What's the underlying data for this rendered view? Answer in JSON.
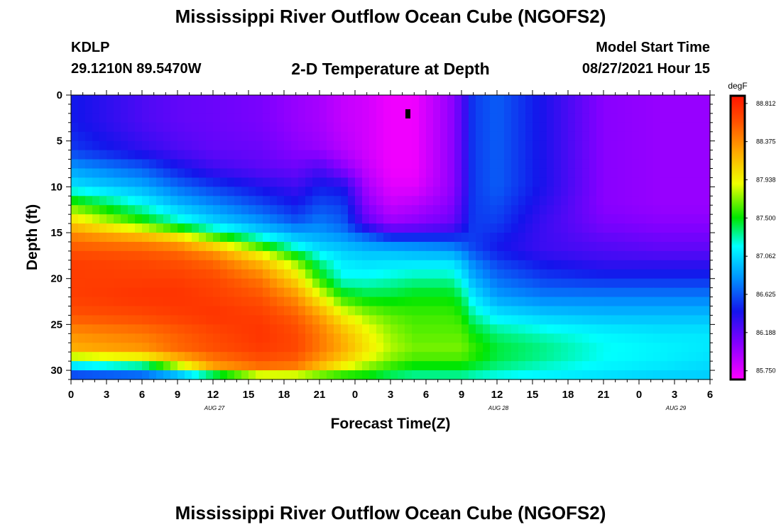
{
  "header": {
    "title": "Mississippi River Outflow Ocean Cube (NGOFS2)",
    "footer_title": "Mississippi River Outflow Ocean Cube (NGOFS2)",
    "station": "KDLP",
    "coordinates": "29.1210N  89.5470W",
    "subtitle": "2-D Temperature at Depth",
    "model_start_label": "Model Start Time",
    "model_start_value": "08/27/2021 Hour 15"
  },
  "chart_data": {
    "type": "heatmap",
    "title": "2-D Temperature at Depth",
    "xlabel": "Forecast Time(Z)",
    "ylabel": "Depth (ft)",
    "x_tick_labels": [
      "0",
      "3",
      "6",
      "9",
      "12",
      "15",
      "18",
      "21",
      "0",
      "3",
      "6",
      "9",
      "12",
      "15",
      "18",
      "21",
      "0",
      "3",
      "6"
    ],
    "x_hours_since_start": [
      0,
      3,
      6,
      9,
      12,
      15,
      18,
      21,
      24,
      27,
      30,
      33,
      36,
      39,
      42,
      45,
      48,
      51,
      54
    ],
    "xlim": [
      0,
      54
    ],
    "date_labels": [
      {
        "label": "AUG 27",
        "hour": 12
      },
      {
        "label": "AUG 28",
        "hour": 36
      },
      {
        "label": "AUG 29",
        "hour": 51
      }
    ],
    "y_ticks": [
      0,
      5,
      10,
      15,
      20,
      25,
      30
    ],
    "ylim": [
      0,
      31
    ],
    "y_inverted": true,
    "colorbar": {
      "unit": "degF",
      "ticks": [
        88.812,
        88.375,
        87.938,
        87.5,
        87.062,
        86.625,
        86.188,
        85.75
      ],
      "min": 85.65,
      "max": 88.9
    },
    "control_points_hours": [
      0,
      6,
      9,
      12,
      16,
      19,
      21,
      23,
      25,
      27,
      29,
      32,
      33,
      34,
      36,
      40,
      45,
      50,
      54
    ],
    "control_points_depths": [
      0,
      3,
      6,
      8,
      10,
      12,
      14,
      15,
      16,
      17,
      18,
      20,
      22,
      24,
      26,
      28,
      29.5,
      31
    ],
    "temperature_grid": [
      [
        86.45,
        86.25,
        86.18,
        86.15,
        86.1,
        86.0,
        85.95,
        85.85,
        85.8,
        85.7,
        85.7,
        86.0,
        86.2,
        86.55,
        86.65,
        86.4,
        86.05,
        86.0,
        86.0
      ],
      [
        86.45,
        86.25,
        86.18,
        86.15,
        86.1,
        86.0,
        85.95,
        85.85,
        85.8,
        85.7,
        85.7,
        86.0,
        86.2,
        86.55,
        86.65,
        86.4,
        86.05,
        86.0,
        86.0
      ],
      [
        86.55,
        86.35,
        86.25,
        86.18,
        86.15,
        86.05,
        86.0,
        85.9,
        85.8,
        85.7,
        85.7,
        86.0,
        86.2,
        86.55,
        86.65,
        86.4,
        86.05,
        86.0,
        86.0
      ],
      [
        86.85,
        86.65,
        86.45,
        86.3,
        86.2,
        86.15,
        86.25,
        86.05,
        85.85,
        85.7,
        85.7,
        86.0,
        86.2,
        86.55,
        86.65,
        86.4,
        86.05,
        86.0,
        86.0
      ],
      [
        87.1,
        86.9,
        86.7,
        86.55,
        86.4,
        86.3,
        86.45,
        86.4,
        85.95,
        85.75,
        85.75,
        86.0,
        86.2,
        86.55,
        86.65,
        86.4,
        86.05,
        86.0,
        86.0
      ],
      [
        87.65,
        87.2,
        86.95,
        86.8,
        86.6,
        86.45,
        86.6,
        86.55,
        86.05,
        85.85,
        85.9,
        86.05,
        86.25,
        86.55,
        86.6,
        86.35,
        86.05,
        86.0,
        86.0
      ],
      [
        88.1,
        87.6,
        87.3,
        87.05,
        86.85,
        86.65,
        86.75,
        86.65,
        86.2,
        86.0,
        86.05,
        86.15,
        86.3,
        86.55,
        86.55,
        86.3,
        86.1,
        86.05,
        86.05
      ],
      [
        88.35,
        88.05,
        87.8,
        87.4,
        87.05,
        86.9,
        86.85,
        86.75,
        86.55,
        86.3,
        86.3,
        86.35,
        86.45,
        86.55,
        86.5,
        86.3,
        86.15,
        86.1,
        86.1
      ],
      [
        88.5,
        88.4,
        88.25,
        87.9,
        87.4,
        87.05,
        86.95,
        86.9,
        86.8,
        86.7,
        86.7,
        86.65,
        86.6,
        86.55,
        86.45,
        86.3,
        86.2,
        86.15,
        86.15
      ],
      [
        88.6,
        88.55,
        88.5,
        88.3,
        87.8,
        87.35,
        87.1,
        87.0,
        86.95,
        86.95,
        86.9,
        86.85,
        86.75,
        86.6,
        86.45,
        86.3,
        86.25,
        86.2,
        86.2
      ],
      [
        88.7,
        88.65,
        88.6,
        88.5,
        88.15,
        87.7,
        87.3,
        87.1,
        87.05,
        87.05,
        87.05,
        87.05,
        86.95,
        86.75,
        86.55,
        86.4,
        86.3,
        86.3,
        86.3
      ],
      [
        88.7,
        88.7,
        88.7,
        88.65,
        88.45,
        88.05,
        87.55,
        87.2,
        87.2,
        87.25,
        87.3,
        87.3,
        87.15,
        86.9,
        86.7,
        86.55,
        86.5,
        86.5,
        86.5
      ],
      [
        88.7,
        88.75,
        88.75,
        88.7,
        88.6,
        88.35,
        87.95,
        87.55,
        87.45,
        87.45,
        87.5,
        87.5,
        87.4,
        87.1,
        86.85,
        86.75,
        86.75,
        86.75,
        86.75
      ],
      [
        88.6,
        88.65,
        88.7,
        88.75,
        88.7,
        88.55,
        88.3,
        87.95,
        87.75,
        87.65,
        87.6,
        87.6,
        87.55,
        87.3,
        87.1,
        87.0,
        86.95,
        86.95,
        86.95
      ],
      [
        88.35,
        88.45,
        88.55,
        88.65,
        88.75,
        88.65,
        88.45,
        88.2,
        87.95,
        87.75,
        87.65,
        87.65,
        87.65,
        87.5,
        87.35,
        87.25,
        87.15,
        87.1,
        87.1
      ],
      [
        88.2,
        88.3,
        88.5,
        88.6,
        88.7,
        88.65,
        88.45,
        88.25,
        88.0,
        87.8,
        87.7,
        87.7,
        87.7,
        87.6,
        87.45,
        87.35,
        87.2,
        87.15,
        87.1
      ],
      [
        87.1,
        87.3,
        87.8,
        88.3,
        88.5,
        88.45,
        88.2,
        87.95,
        87.75,
        87.6,
        87.5,
        87.5,
        87.5,
        87.45,
        87.35,
        87.25,
        87.15,
        87.1,
        87.05
      ],
      [
        86.35,
        86.4,
        86.55,
        86.95,
        87.55,
        87.55,
        87.45,
        87.4,
        87.4,
        87.3,
        87.25,
        87.25,
        87.25,
        87.2,
        87.15,
        87.1,
        87.05,
        87.0,
        87.0
      ]
    ]
  }
}
